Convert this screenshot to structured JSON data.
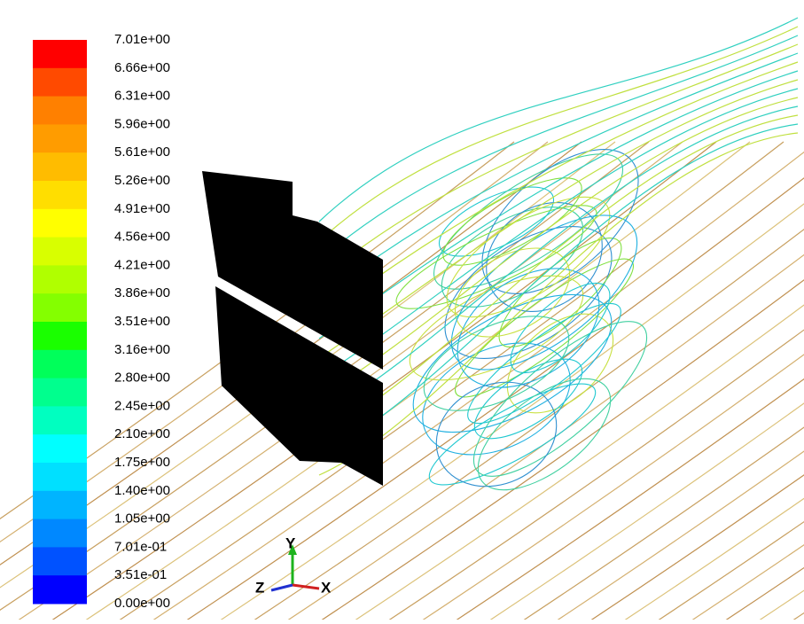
{
  "legend": {
    "labels": [
      "7.01e+00",
      "6.66e+00",
      "6.31e+00",
      "5.96e+00",
      "5.61e+00",
      "5.26e+00",
      "4.91e+00",
      "4.56e+00",
      "4.21e+00",
      "3.86e+00",
      "3.51e+00",
      "3.16e+00",
      "2.80e+00",
      "2.45e+00",
      "2.10e+00",
      "1.75e+00",
      "1.40e+00",
      "1.05e+00",
      "7.01e-01",
      "3.51e-01",
      "0.00e+00"
    ],
    "colors": [
      "#ff0000",
      "#ff4a00",
      "#ff8000",
      "#ff9c00",
      "#ffbc00",
      "#ffde00",
      "#ffff00",
      "#d8ff00",
      "#b0ff00",
      "#84ff00",
      "#1aff00",
      "#00ff5a",
      "#00ff8e",
      "#00ffc0",
      "#00ffff",
      "#00e0ff",
      "#00b4ff",
      "#0088ff",
      "#0052ff",
      "#0000ff"
    ]
  },
  "axes_triad": {
    "x": "X",
    "y": "Y",
    "z": "Z"
  }
}
